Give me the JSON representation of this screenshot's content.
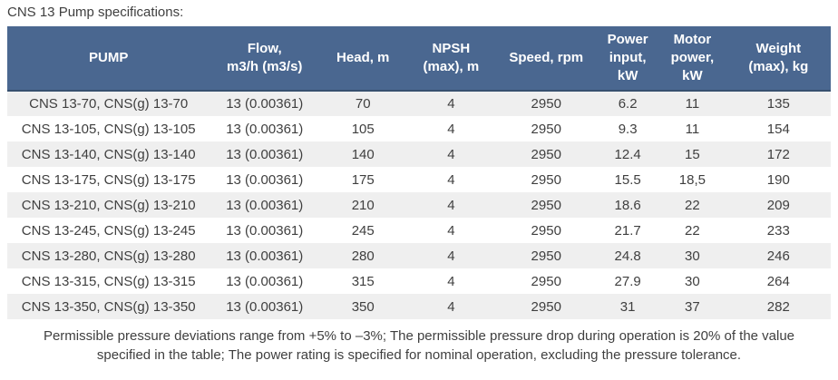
{
  "page": {
    "title": "CNS 13 Pump specifications:"
  },
  "table": {
    "columns": [
      "PUMP",
      "Flow,\nm3/h (m3/s)",
      "Head, m",
      "NPSH\n(max), m",
      "Speed, rpm",
      "Power\ninput,\nkW",
      "Motor\npower,\nkW",
      "Weight\n(max), kg"
    ],
    "rows": [
      [
        "CNS 13-70, CNS(g) 13-70",
        "13 (0.00361)",
        "70",
        "4",
        "2950",
        "6.2",
        "11",
        "135"
      ],
      [
        "CNS 13-105, CNS(g) 13-105",
        "13 (0.00361)",
        "105",
        "4",
        "2950",
        "9.3",
        "11",
        "154"
      ],
      [
        "CNS 13-140, CNS(g) 13-140",
        "13 (0.00361)",
        "140",
        "4",
        "2950",
        "12.4",
        "15",
        "172"
      ],
      [
        "CNS 13-175, CNS(g) 13-175",
        "13 (0.00361)",
        "175",
        "4",
        "2950",
        "15.5",
        "18,5",
        "190"
      ],
      [
        "CNS 13-210, CNS(g) 13-210",
        "13 (0.00361)",
        "210",
        "4",
        "2950",
        "18.6",
        "22",
        "209"
      ],
      [
        "CNS 13-245, CNS(g) 13-245",
        "13 (0.00361)",
        "245",
        "4",
        "2950",
        "21.7",
        "22",
        "233"
      ],
      [
        "CNS 13-280, CNS(g) 13-280",
        "13 (0.00361)",
        "280",
        "4",
        "2950",
        "24.8",
        "30",
        "246"
      ],
      [
        "CNS 13-315, CNS(g) 13-315",
        "13 (0.00361)",
        "315",
        "4",
        "2950",
        "27.9",
        "30",
        "264"
      ],
      [
        "CNS 13-350, CNS(g) 13-350",
        "13 (0.00361)",
        "350",
        "4",
        "2950",
        "31",
        "37",
        "282"
      ]
    ]
  },
  "footer": {
    "note": "Permissible pressure deviations range from +5% to –3%; The permissible pressure drop during operation is 20% of the value specified in the table; The power rating is specified for nominal operation, excluding the pressure tolerance."
  },
  "colors": {
    "header_bg": "#4a6790",
    "header_text": "#ffffff",
    "header_border_bottom": "#37506f",
    "row_alt_bg": "#efefef",
    "body_text": "#3f3f3f"
  }
}
